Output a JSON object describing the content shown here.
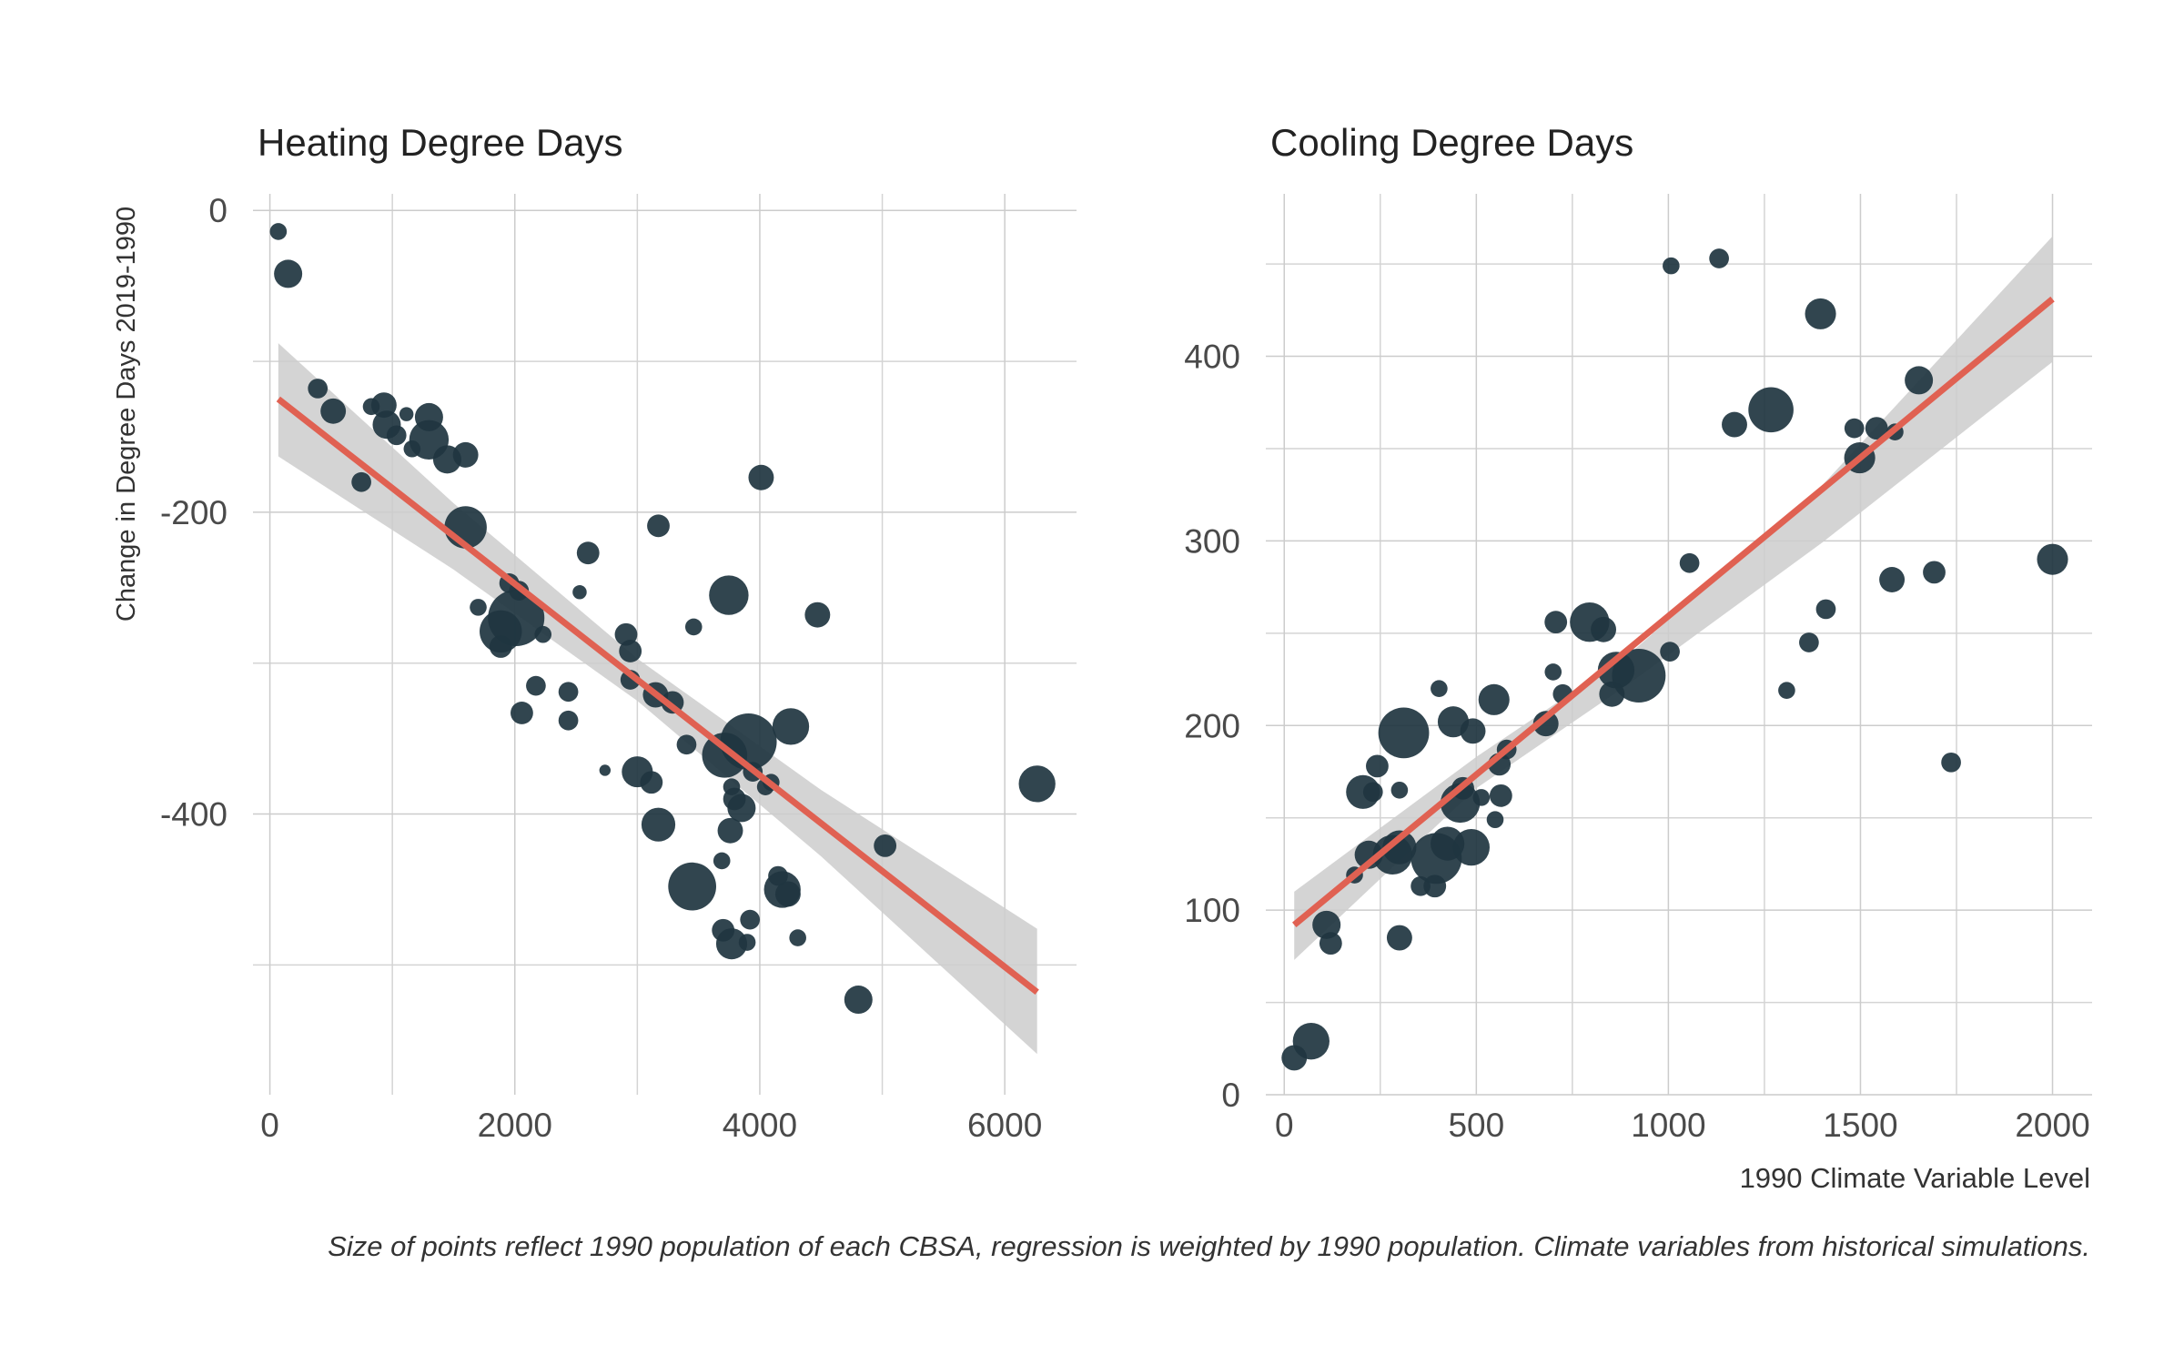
{
  "caption": "Size of points reflect 1990 population of each CBSA, regression is weighted by 1990 population. Climate variables from historical simulations.",
  "chart_data": [
    {
      "type": "scatter",
      "title": "Heating Degree Days",
      "ylabel": "Change in Degree Days 2019-1990",
      "color": "#1f3540",
      "fit_color": "#e06152",
      "band_color": "#cccccc",
      "grid": true,
      "xlim": [
        -138,
        6586
      ],
      "ylim": [
        -586,
        11
      ],
      "xticks": [
        0,
        2000,
        4000,
        6000
      ],
      "yticks": [
        0,
        -200,
        -400
      ],
      "x_minor_grid": [
        1000,
        3000,
        5000
      ],
      "y_minor_grid": [
        -100,
        -300,
        -500
      ],
      "x": [
        69,
        149,
        391,
        517,
        747,
        828,
        931,
        954,
        1034,
        1115,
        1161,
        1299,
        1299,
        1448,
        1598,
        1598,
        1701,
        1954,
        2034,
        1885,
        1885,
        2011,
        2230,
        2172,
        2057,
        2437,
        2437,
        2529,
        2598,
        2736,
        2908,
        2943,
        2943,
        3000,
        3115,
        3172,
        3149,
        3287,
        3172,
        3402,
        3460,
        3448,
        3690,
        3747,
        3713,
        3770,
        3793,
        3851,
        3759,
        3908,
        3943,
        4011,
        4046,
        4092,
        4253,
        4471,
        4149,
        4184,
        4230,
        3920,
        3897,
        3701,
        3770,
        4310,
        4805,
        5023,
        6264
      ],
      "y": [
        -14,
        -42,
        -118,
        -133,
        -180,
        -130,
        -129,
        -142,
        -149,
        -135,
        -158,
        -137,
        -152,
        -165,
        -162,
        -210,
        -263,
        -247,
        -252,
        -279,
        -289,
        -270,
        -281,
        -315,
        -333,
        -319,
        -338,
        -253,
        -227,
        -371,
        -281,
        -292,
        -311,
        -372,
        -379,
        -209,
        -321,
        -326,
        -407,
        -354,
        -276,
        -448,
        -431,
        -255,
        -361,
        -382,
        -390,
        -396,
        -411,
        -352,
        -372,
        -177,
        -382,
        -379,
        -342,
        -268,
        -441,
        -450,
        -453,
        -470,
        -485,
        -477,
        -486,
        -482,
        -523,
        -421,
        -380
      ],
      "sizes": [
        6,
        10,
        7,
        9,
        7,
        6,
        9,
        10,
        7,
        5,
        6,
        10,
        14,
        10,
        9,
        15,
        6,
        7,
        7,
        15,
        8,
        20,
        6,
        7,
        8,
        7,
        7,
        5,
        8,
        4,
        8,
        8,
        7,
        11,
        8,
        8,
        9,
        8,
        12,
        7,
        6,
        17,
        6,
        14,
        16,
        6,
        8,
        10,
        9,
        20,
        7,
        9,
        6,
        6,
        13,
        9,
        7,
        13,
        9,
        7,
        6,
        8,
        11,
        6,
        10,
        8,
        13
      ],
      "fit": {
        "x": [
          69,
          6264
        ],
        "y": [
          -125,
          -518
        ]
      },
      "band": {
        "x": [
          69,
          1500,
          3000,
          4500,
          6264
        ],
        "lower": [
          -163,
          -238,
          -325,
          -428,
          -559
        ],
        "upper": [
          -88,
          -194,
          -297,
          -384,
          -476
        ]
      }
    },
    {
      "type": "scatter",
      "title": "Cooling Degree Days",
      "xlabel": "1990 Climate Variable Level",
      "color": "#1f3540",
      "fit_color": "#e06152",
      "band_color": "#cccccc",
      "grid": true,
      "xlim": [
        -48,
        2103
      ],
      "ylim": [
        0,
        488
      ],
      "xticks": [
        0,
        500,
        1000,
        1500,
        2000
      ],
      "yticks": [
        0,
        100,
        200,
        300,
        400
      ],
      "x_minor_grid": [
        250,
        750,
        1250,
        1750
      ],
      "y_minor_grid": [
        50,
        150,
        250,
        350,
        450
      ],
      "x": [
        26,
        70,
        110,
        121,
        183,
        205,
        231,
        242,
        220,
        282,
        300,
        311,
        300,
        300,
        355,
        392,
        396,
        425,
        403,
        440,
        491,
        458,
        487,
        465,
        513,
        546,
        549,
        564,
        560,
        579,
        681,
        700,
        707,
        725,
        795,
        831,
        864,
        923,
        853,
        1004,
        1007,
        1055,
        1132,
        1172,
        1267,
        1308,
        1366,
        1396,
        1410,
        1484,
        1498,
        1542,
        1590,
        1582,
        1652,
        1692,
        1736,
        2000
      ],
      "y": [
        20,
        29,
        92,
        82,
        119,
        164,
        164,
        178,
        130,
        130,
        134,
        196,
        165,
        85,
        113,
        113,
        128,
        136,
        220,
        202,
        197,
        158,
        134,
        166,
        161,
        214,
        149,
        162,
        179,
        187,
        201,
        229,
        256,
        217,
        256,
        252,
        230,
        227,
        217,
        240,
        449,
        288,
        453,
        363,
        371,
        219,
        245,
        423,
        263,
        361,
        345,
        361,
        359,
        279,
        387,
        283,
        180,
        290
      ],
      "sizes": [
        9,
        13,
        10,
        8,
        6,
        12,
        7,
        8,
        10,
        14,
        12,
        18,
        6,
        9,
        7,
        8,
        18,
        12,
        6,
        11,
        9,
        14,
        13,
        8,
        6,
        11,
        6,
        8,
        8,
        7,
        9,
        6,
        8,
        7,
        14,
        9,
        13,
        19,
        9,
        7,
        6,
        7,
        7,
        9,
        16,
        6,
        7,
        11,
        7,
        7,
        11,
        8,
        6,
        9,
        10,
        8,
        7,
        11
      ],
      "fit": {
        "x": [
          26,
          2000
        ],
        "y": [
          92,
          431
        ]
      },
      "band": {
        "x": [
          26,
          500,
          900,
          1400,
          2000
        ],
        "lower": [
          73,
          166,
          223,
          299,
          397
        ],
        "upper": [
          110,
          183,
          239,
          330,
          465
        ]
      }
    }
  ]
}
